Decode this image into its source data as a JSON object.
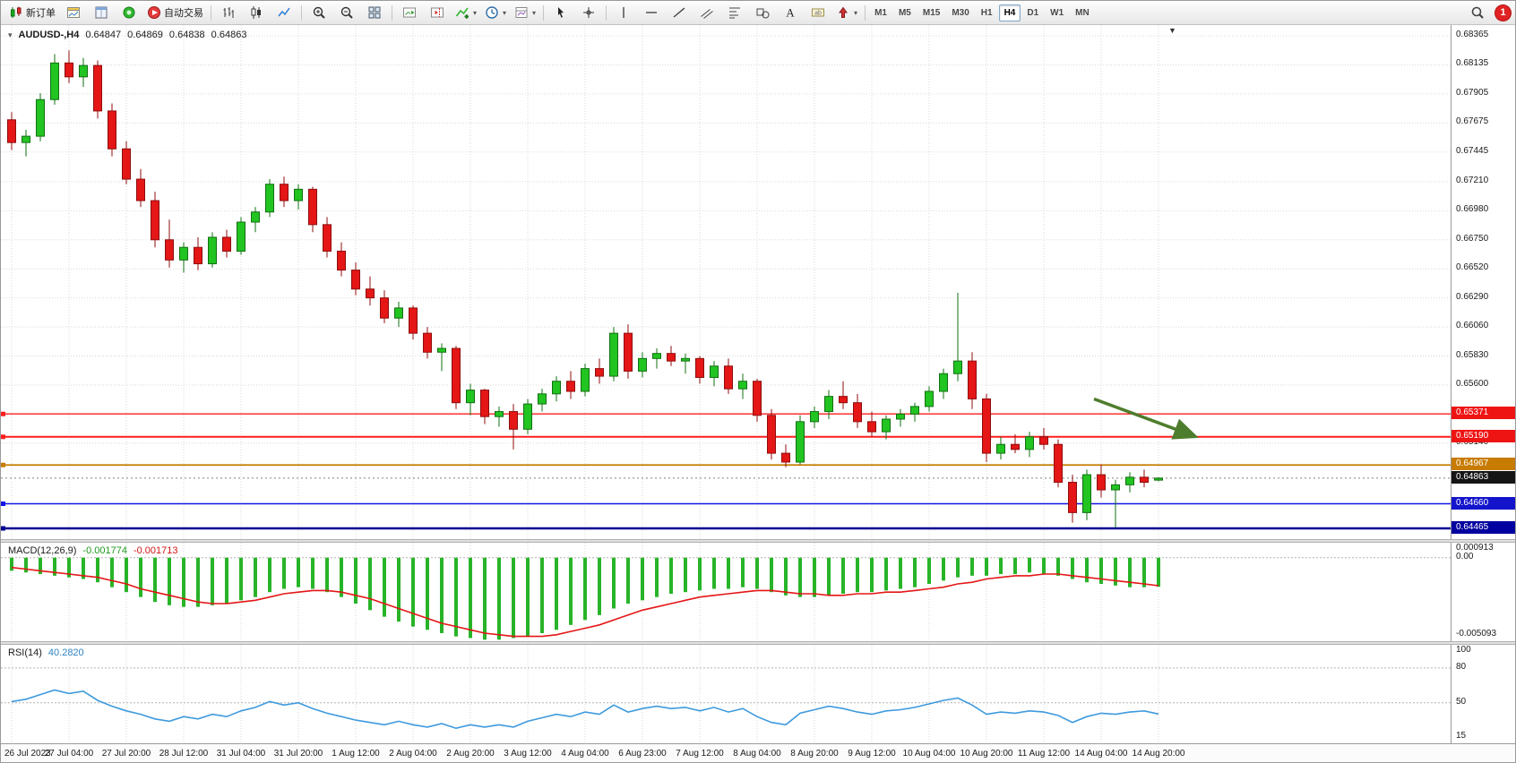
{
  "toolbar": {
    "items": [
      {
        "name": "new-order-button",
        "icon": "new-order-icon",
        "label": "新订单"
      },
      {
        "name": "chart-window-button",
        "icon": "chart-window-icon"
      },
      {
        "name": "data-window-button",
        "icon": "data-window-icon"
      },
      {
        "name": "market-watch-button",
        "icon": "market-watch-icon"
      },
      {
        "name": "autotrade-button",
        "icon": "autotrade-icon",
        "label": "自动交易"
      },
      {
        "type": "sep"
      },
      {
        "name": "bar-chart-button",
        "icon": "bar-chart-icon"
      },
      {
        "name": "candlestick-chart-button",
        "icon": "candlestick-icon"
      },
      {
        "name": "line-chart-button",
        "icon": "line-chart-icon"
      },
      {
        "type": "sep"
      },
      {
        "name": "zoom-in-button",
        "icon": "zoom-in-icon"
      },
      {
        "name": "zoom-out-button",
        "icon": "zoom-out-icon"
      },
      {
        "name": "tile-windows-button",
        "icon": "tile-windows-icon"
      },
      {
        "type": "sep"
      },
      {
        "name": "auto-scroll-button",
        "icon": "auto-scroll-icon"
      },
      {
        "name": "chart-shift-button",
        "icon": "chart-shift-icon"
      },
      {
        "name": "add-indicator-button",
        "icon": "add-indicator-icon",
        "dropdown": true
      },
      {
        "name": "periods-button",
        "icon": "periods-icon",
        "dropdown": true
      },
      {
        "name": "templates-button",
        "icon": "templates-icon",
        "dropdown": true
      },
      {
        "type": "sep"
      },
      {
        "name": "cursor-button",
        "icon": "cursor-icon"
      },
      {
        "name": "crosshair-button",
        "icon": "crosshair-icon"
      },
      {
        "type": "sep"
      },
      {
        "name": "vertical-line-button",
        "icon": "vertical-line-icon"
      },
      {
        "name": "horizontal-line-button",
        "icon": "horizontal-line-icon"
      },
      {
        "name": "trendline-button",
        "icon": "trendline-icon"
      },
      {
        "name": "channel-button",
        "icon": "channel-icon"
      },
      {
        "name": "fibonacci-button",
        "icon": "fibonacci-icon"
      },
      {
        "name": "shapes-button",
        "icon": "shapes-icon"
      },
      {
        "name": "text-button",
        "icon": "text-icon"
      },
      {
        "name": "label-button",
        "icon": "label-icon"
      },
      {
        "name": "arrow-tools-button",
        "icon": "arrow-tools-icon",
        "dropdown": true
      },
      {
        "type": "sep"
      },
      {
        "type": "timeframes"
      },
      {
        "type": "spacer"
      },
      {
        "name": "search-button",
        "icon": "search-icon"
      },
      {
        "type": "notification-badge"
      }
    ],
    "timeframes": [
      "M1",
      "M5",
      "M15",
      "M30",
      "H1",
      "H4",
      "D1",
      "W1",
      "MN"
    ],
    "active_timeframe": "H4",
    "notification_count": "1"
  },
  "chart": {
    "title": "AUDUSD-,H4",
    "open": "0.64847",
    "high": "0.64869",
    "low": "0.64838",
    "close": "0.64863",
    "price_axis": {
      "labels": [
        "0.68365",
        "0.68135",
        "0.67905",
        "0.67675",
        "0.67445",
        "0.67210",
        "0.66980",
        "0.66750",
        "0.66520",
        "0.66290",
        "0.66060",
        "0.65830",
        "0.65600",
        "0.65140"
      ]
    }
  },
  "chart_data": {
    "type": "candlestick",
    "symbol": "AUDUSD-",
    "period": "H4",
    "ylim": [
      0.6438,
      0.6845
    ],
    "label_step": 4,
    "time_labels": [
      "26 Jul 2023",
      "27 Jul 04:00",
      "27 Jul 20:00",
      "28 Jul 12:00",
      "31 Jul 04:00",
      "31 Jul 20:00",
      "1 Aug 12:00",
      "2 Aug 04:00",
      "2 Aug 20:00",
      "3 Aug 12:00",
      "4 Aug 04:00",
      "6 Aug 23:00",
      "7 Aug 12:00",
      "8 Aug 04:00",
      "8 Aug 20:00",
      "9 Aug 12:00",
      "10 Aug 04:00",
      "10 Aug 20:00",
      "11 Aug 12:00",
      "14 Aug 04:00",
      "14 Aug 20:00"
    ],
    "candles": [
      [
        0.677,
        0.6776,
        0.6746,
        0.6752
      ],
      [
        0.6752,
        0.6762,
        0.6741,
        0.6757
      ],
      [
        0.6757,
        0.6791,
        0.6753,
        0.6786
      ],
      [
        0.6786,
        0.6822,
        0.6782,
        0.6815
      ],
      [
        0.6815,
        0.6825,
        0.6799,
        0.6804
      ],
      [
        0.6804,
        0.6819,
        0.6796,
        0.6813
      ],
      [
        0.6813,
        0.6817,
        0.6771,
        0.6777
      ],
      [
        0.6777,
        0.6783,
        0.6741,
        0.6747
      ],
      [
        0.6747,
        0.6753,
        0.6719,
        0.6723
      ],
      [
        0.6723,
        0.6731,
        0.6701,
        0.6706
      ],
      [
        0.6706,
        0.6713,
        0.6669,
        0.6675
      ],
      [
        0.6675,
        0.6691,
        0.6653,
        0.6659
      ],
      [
        0.6659,
        0.6673,
        0.6649,
        0.6669
      ],
      [
        0.6669,
        0.6677,
        0.6651,
        0.6656
      ],
      [
        0.6656,
        0.6681,
        0.6653,
        0.6677
      ],
      [
        0.6677,
        0.6683,
        0.6661,
        0.6666
      ],
      [
        0.6666,
        0.6693,
        0.6663,
        0.6689
      ],
      [
        0.6689,
        0.6701,
        0.6681,
        0.6697
      ],
      [
        0.6697,
        0.6723,
        0.6693,
        0.6719
      ],
      [
        0.6719,
        0.6725,
        0.6701,
        0.6706
      ],
      [
        0.6706,
        0.6719,
        0.6699,
        0.6715
      ],
      [
        0.6715,
        0.6717,
        0.6681,
        0.6687
      ],
      [
        0.6687,
        0.6693,
        0.6661,
        0.6666
      ],
      [
        0.6666,
        0.6673,
        0.6646,
        0.6651
      ],
      [
        0.6651,
        0.6657,
        0.6631,
        0.6636
      ],
      [
        0.6636,
        0.6646,
        0.6623,
        0.6629
      ],
      [
        0.6629,
        0.6635,
        0.6609,
        0.6613
      ],
      [
        0.6613,
        0.6626,
        0.6606,
        0.6621
      ],
      [
        0.6621,
        0.6623,
        0.6596,
        0.6601
      ],
      [
        0.6601,
        0.6606,
        0.6581,
        0.6586
      ],
      [
        0.6586,
        0.6593,
        0.6571,
        0.6589
      ],
      [
        0.6589,
        0.6591,
        0.6541,
        0.6546
      ],
      [
        0.6546,
        0.6561,
        0.6536,
        0.6556
      ],
      [
        0.6556,
        0.6557,
        0.6529,
        0.6535
      ],
      [
        0.6535,
        0.6543,
        0.6527,
        0.6539
      ],
      [
        0.6539,
        0.6545,
        0.6509,
        0.6525
      ],
      [
        0.6525,
        0.6549,
        0.6521,
        0.6545
      ],
      [
        0.6545,
        0.6557,
        0.6539,
        0.6553
      ],
      [
        0.6553,
        0.6567,
        0.6547,
        0.6563
      ],
      [
        0.6563,
        0.6571,
        0.6549,
        0.6555
      ],
      [
        0.6555,
        0.6577,
        0.6551,
        0.6573
      ],
      [
        0.6573,
        0.6581,
        0.6561,
        0.6567
      ],
      [
        0.6567,
        0.6606,
        0.6563,
        0.6601
      ],
      [
        0.6601,
        0.6608,
        0.6565,
        0.6571
      ],
      [
        0.6571,
        0.6586,
        0.6566,
        0.6581
      ],
      [
        0.6581,
        0.6589,
        0.6573,
        0.6585
      ],
      [
        0.6585,
        0.6591,
        0.6575,
        0.6579
      ],
      [
        0.6579,
        0.6585,
        0.6569,
        0.6581
      ],
      [
        0.6581,
        0.6583,
        0.6561,
        0.6566
      ],
      [
        0.6566,
        0.6579,
        0.6559,
        0.6575
      ],
      [
        0.6575,
        0.6581,
        0.6553,
        0.6557
      ],
      [
        0.6557,
        0.6569,
        0.6549,
        0.6563
      ],
      [
        0.6563,
        0.6565,
        0.6531,
        0.6536
      ],
      [
        0.6536,
        0.6541,
        0.6501,
        0.6506
      ],
      [
        0.6506,
        0.6513,
        0.6495,
        0.6499
      ],
      [
        0.6499,
        0.6536,
        0.6497,
        0.6531
      ],
      [
        0.6531,
        0.6543,
        0.6526,
        0.6539
      ],
      [
        0.6539,
        0.6556,
        0.6533,
        0.6551
      ],
      [
        0.6551,
        0.6563,
        0.6541,
        0.6546
      ],
      [
        0.6546,
        0.6553,
        0.6526,
        0.6531
      ],
      [
        0.6531,
        0.6539,
        0.6519,
        0.6523
      ],
      [
        0.6523,
        0.6536,
        0.6517,
        0.6533
      ],
      [
        0.6533,
        0.6541,
        0.6527,
        0.6537
      ],
      [
        0.6537,
        0.6546,
        0.6531,
        0.6543
      ],
      [
        0.6543,
        0.6559,
        0.6539,
        0.6555
      ],
      [
        0.6555,
        0.6573,
        0.6549,
        0.6569
      ],
      [
        0.6569,
        0.6633,
        0.6563,
        0.6579
      ],
      [
        0.6579,
        0.6586,
        0.6541,
        0.6549
      ],
      [
        0.6549,
        0.6553,
        0.6499,
        0.6506
      ],
      [
        0.6506,
        0.6519,
        0.6501,
        0.6513
      ],
      [
        0.6513,
        0.6521,
        0.6506,
        0.6509
      ],
      [
        0.6509,
        0.6523,
        0.6503,
        0.6519
      ],
      [
        0.6519,
        0.6526,
        0.6509,
        0.6513
      ],
      [
        0.6513,
        0.6517,
        0.6479,
        0.6483
      ],
      [
        0.6483,
        0.6489,
        0.6451,
        0.6459
      ],
      [
        0.6459,
        0.6493,
        0.6453,
        0.6489
      ],
      [
        0.6489,
        0.6497,
        0.6471,
        0.6477
      ],
      [
        0.6477,
        0.6485,
        0.6447,
        0.6481
      ],
      [
        0.6481,
        0.6491,
        0.6475,
        0.6487
      ],
      [
        0.6487,
        0.6493,
        0.6479,
        0.6483
      ],
      [
        0.64847,
        0.64869,
        0.64838,
        0.64863
      ]
    ],
    "levels": [
      {
        "price": 0.65371,
        "line_color": "#ff1e1e",
        "line_width": 1.4,
        "badge_bg": "#ef1414",
        "badge_text": "0.65371"
      },
      {
        "price": 0.6519,
        "line_color": "#ff1e1e",
        "line_width": 2.0,
        "badge_bg": "#ef1414",
        "badge_text": "0.65190"
      },
      {
        "price": 0.64967,
        "line_color": "#c77b00",
        "line_width": 1.8,
        "badge_bg": "#c77b00",
        "badge_text": "0.64967"
      },
      {
        "price": 0.64863,
        "line_color": "#808080",
        "line_width": 1.0,
        "dash": "2 3",
        "badge_bg": "#151515",
        "badge_text": "0.64863"
      },
      {
        "price": 0.6466,
        "line_color": "#1414e6",
        "line_width": 1.6,
        "badge_bg": "#1414cc",
        "badge_text": "0.64660"
      },
      {
        "price": 0.64465,
        "line_color": "#000091",
        "line_width": 2.4,
        "badge_bg": "#0000a0",
        "badge_text": "0.64465"
      }
    ],
    "arrow": {
      "from_bar": 75.5,
      "from_price": 0.6549,
      "to_bar": 82.5,
      "to_price": 0.65195,
      "color": "#4e7d2d"
    },
    "macd": {
      "label": "MACD(12,26,9)",
      "value_main": "-0.001774",
      "value_signal": "-0.001713",
      "axis": [
        "0.000913",
        "0.00",
        "-0.005093"
      ],
      "range": [
        0.000913,
        -0.005093
      ],
      "histogram": [
        -0.0008,
        -0.0009,
        -0.001,
        -0.0011,
        -0.0012,
        -0.0013,
        -0.0015,
        -0.0018,
        -0.0021,
        -0.0024,
        -0.0027,
        -0.0029,
        -0.003,
        -0.003,
        -0.0029,
        -0.0028,
        -0.0026,
        -0.0024,
        -0.0021,
        -0.0019,
        -0.0018,
        -0.0019,
        -0.0021,
        -0.0024,
        -0.0028,
        -0.0032,
        -0.0036,
        -0.0039,
        -0.0042,
        -0.0044,
        -0.0046,
        -0.0048,
        -0.0049,
        -0.005,
        -0.005,
        -0.0049,
        -0.0048,
        -0.0046,
        -0.0044,
        -0.0041,
        -0.0038,
        -0.0035,
        -0.0031,
        -0.0028,
        -0.0026,
        -0.0024,
        -0.0022,
        -0.0021,
        -0.002,
        -0.0019,
        -0.0019,
        -0.0018,
        -0.0019,
        -0.0021,
        -0.0023,
        -0.0024,
        -0.0024,
        -0.0023,
        -0.0022,
        -0.0021,
        -0.0021,
        -0.002,
        -0.0019,
        -0.0018,
        -0.0016,
        -0.0014,
        -0.0012,
        -0.0011,
        -0.0011,
        -0.001,
        -0.001,
        -0.0009,
        -0.001,
        -0.0011,
        -0.0013,
        -0.0015,
        -0.0016,
        -0.0017,
        -0.0018,
        -0.0018,
        -0.001774
      ],
      "signal": [
        -0.0006,
        -0.0007,
        -0.0008,
        -0.0009,
        -0.001,
        -0.0011,
        -0.0012,
        -0.0014,
        -0.0016,
        -0.0019,
        -0.0021,
        -0.0023,
        -0.0025,
        -0.0027,
        -0.0028,
        -0.0028,
        -0.0027,
        -0.0026,
        -0.0024,
        -0.0022,
        -0.0021,
        -0.002,
        -0.002,
        -0.0021,
        -0.0023,
        -0.0025,
        -0.0028,
        -0.0031,
        -0.0034,
        -0.0037,
        -0.004,
        -0.0042,
        -0.0044,
        -0.0046,
        -0.0047,
        -0.0048,
        -0.0048,
        -0.0048,
        -0.0047,
        -0.0045,
        -0.0043,
        -0.0041,
        -0.0038,
        -0.0035,
        -0.0032,
        -0.003,
        -0.0028,
        -0.0026,
        -0.0024,
        -0.0023,
        -0.0022,
        -0.0021,
        -0.002,
        -0.002,
        -0.0021,
        -0.0022,
        -0.0022,
        -0.0023,
        -0.0023,
        -0.0022,
        -0.0022,
        -0.0021,
        -0.0021,
        -0.002,
        -0.0019,
        -0.0018,
        -0.0016,
        -0.0015,
        -0.0013,
        -0.0012,
        -0.0011,
        -0.0011,
        -0.001,
        -0.001,
        -0.0011,
        -0.0012,
        -0.0013,
        -0.0014,
        -0.0015,
        -0.0016,
        -0.001713
      ]
    },
    "rsi": {
      "label": "RSI(14)",
      "value": "40.2820",
      "axis": [
        "100",
        "80",
        "50",
        "15"
      ],
      "range": [
        15,
        100
      ],
      "levels": [
        80,
        50
      ],
      "series": [
        51,
        53,
        57,
        61,
        58,
        60,
        52,
        47,
        43,
        40,
        36,
        34,
        38,
        36,
        40,
        38,
        43,
        46,
        51,
        48,
        50,
        45,
        41,
        38,
        35,
        33,
        31,
        34,
        31,
        29,
        32,
        28,
        31,
        29,
        31,
        29,
        34,
        37,
        40,
        38,
        42,
        40,
        48,
        42,
        45,
        47,
        45,
        46,
        43,
        46,
        42,
        45,
        38,
        33,
        31,
        41,
        44,
        47,
        45,
        42,
        40,
        43,
        44,
        46,
        49,
        52,
        54,
        48,
        40,
        42,
        41,
        43,
        42,
        39,
        33,
        38,
        41,
        40,
        42,
        43,
        40.28
      ]
    },
    "colors": {
      "bull_fill": "#21c421",
      "bull_stroke": "#127012",
      "bear_fill": "#e41616",
      "bear_stroke": "#8f0d0d",
      "grid": "#dadada",
      "macd_hist": "#28b428",
      "macd_signal": "#e41616",
      "rsi_line": "#3e9ade",
      "level_dotted": "#b4b4b4"
    }
  }
}
